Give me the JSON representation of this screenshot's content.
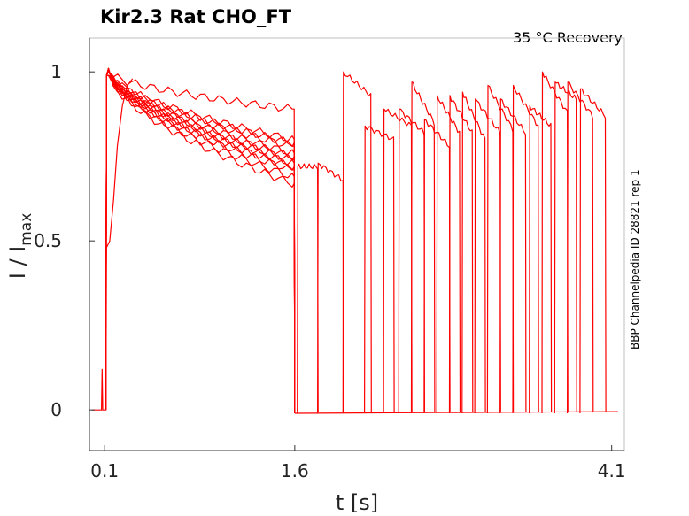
{
  "chart_data": {
    "type": "line",
    "title": "Kir2.3  Rat  CHO_FT",
    "subtitle": "35 °C  Recovery",
    "side_label": "BBP Channelpedia ID 28821 rep 1",
    "xlabel": "t [s]",
    "ylabel_main": "I / I",
    "ylabel_sub": "max",
    "xlim": [
      -0.02,
      4.2
    ],
    "ylim": [
      -0.12,
      1.1
    ],
    "xticks": [
      {
        "value": 0.1,
        "label": "0.1"
      },
      {
        "value": 1.6,
        "label": "1.6"
      },
      {
        "value": 4.1,
        "label": "4.1"
      }
    ],
    "yticks": [
      {
        "value": 0,
        "label": "0"
      },
      {
        "value": 0.5,
        "label": "0.5"
      },
      {
        "value": 1,
        "label": "1"
      }
    ],
    "grid": false,
    "line_color": "#ff0000",
    "conditioning_end_levels": [
      0.67,
      0.69,
      0.71,
      0.72,
      0.73,
      0.74,
      0.75,
      0.76,
      0.78,
      0.79,
      0.8,
      0.89
    ],
    "recovery_pulses": [
      {
        "start": 1.62,
        "end": 1.78,
        "peak": 0.72,
        "end_level": 0.72
      },
      {
        "start": 1.78,
        "end": 1.98,
        "peak": 0.73,
        "end_level": 0.68
      },
      {
        "start": 1.98,
        "end": 2.2,
        "peak": 1.0,
        "end_level": 0.93
      },
      {
        "start": 2.15,
        "end": 2.38,
        "peak": 0.84,
        "end_level": 0.8
      },
      {
        "start": 2.3,
        "end": 2.52,
        "peak": 0.89,
        "end_level": 0.84
      },
      {
        "start": 2.42,
        "end": 2.62,
        "peak": 0.89,
        "end_level": 0.82
      },
      {
        "start": 2.52,
        "end": 2.7,
        "peak": 0.97,
        "end_level": 0.85
      },
      {
        "start": 2.62,
        "end": 2.82,
        "peak": 0.86,
        "end_level": 0.78
      },
      {
        "start": 2.72,
        "end": 2.9,
        "peak": 0.93,
        "end_level": 0.82
      },
      {
        "start": 2.82,
        "end": 3.0,
        "peak": 0.93,
        "end_level": 0.82
      },
      {
        "start": 2.92,
        "end": 3.1,
        "peak": 0.94,
        "end_level": 0.8
      },
      {
        "start": 3.02,
        "end": 3.22,
        "peak": 0.92,
        "end_level": 0.82
      },
      {
        "start": 3.12,
        "end": 3.32,
        "peak": 0.96,
        "end_level": 0.83
      },
      {
        "start": 3.22,
        "end": 3.42,
        "peak": 0.92,
        "end_level": 0.82
      },
      {
        "start": 3.32,
        "end": 3.52,
        "peak": 0.96,
        "end_level": 0.84
      },
      {
        "start": 3.45,
        "end": 3.62,
        "peak": 0.9,
        "end_level": 0.84
      },
      {
        "start": 3.55,
        "end": 3.75,
        "peak": 1.0,
        "end_level": 0.88
      },
      {
        "start": 3.65,
        "end": 3.82,
        "peak": 0.97,
        "end_level": 0.92
      },
      {
        "start": 3.75,
        "end": 3.95,
        "peak": 0.97,
        "end_level": 0.87
      },
      {
        "start": 3.85,
        "end": 4.05,
        "peak": 0.95,
        "end_level": 0.87
      }
    ]
  }
}
